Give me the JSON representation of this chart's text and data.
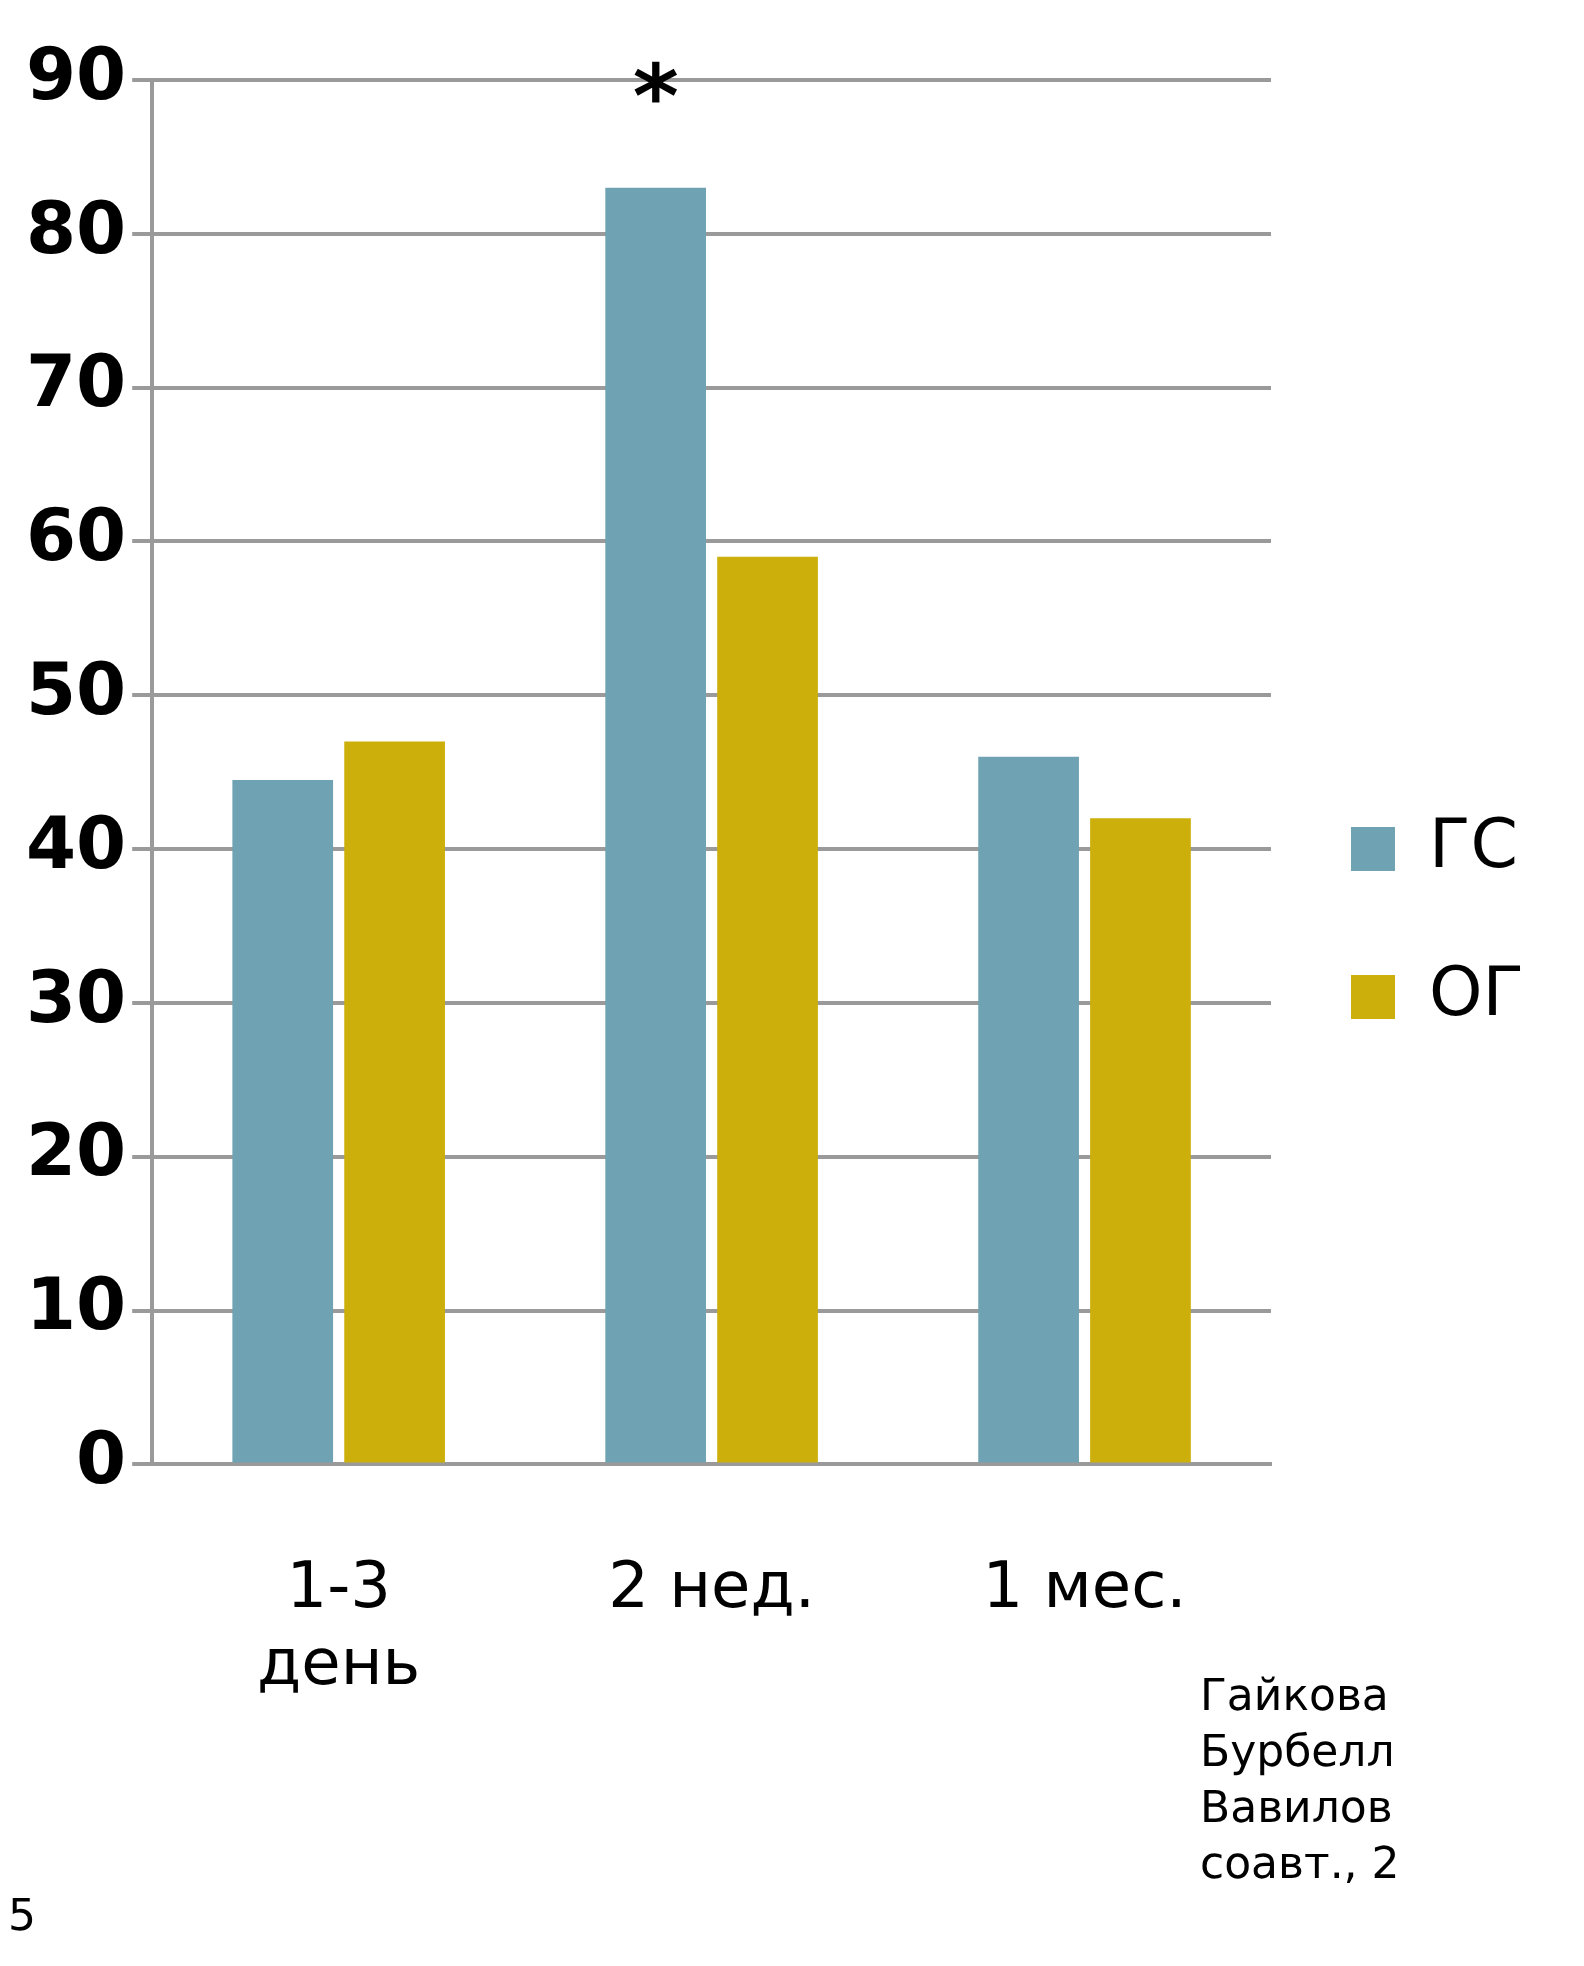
{
  "chart_data": {
    "type": "bar",
    "categories": [
      "1-3\nдень",
      "2 нед.",
      "1 мес."
    ],
    "series": [
      {
        "name": "ГС",
        "color": "#6fa2b2",
        "values": [
          44.5,
          83,
          46
        ]
      },
      {
        "name": "ОГ",
        "color": "#ccaf0a",
        "values": [
          47,
          59,
          42
        ]
      }
    ],
    "ylim": [
      0,
      90
    ],
    "yticks": [
      0,
      10,
      20,
      30,
      40,
      50,
      60,
      70,
      80,
      90
    ],
    "grid": "y",
    "legend": "right",
    "annotations": [
      {
        "text": "*",
        "x": "2 нед.",
        "y": 83
      },
      "Гайкова\nБурбелл\nВавилов\nсоавт., 2",
      "5"
    ]
  }
}
